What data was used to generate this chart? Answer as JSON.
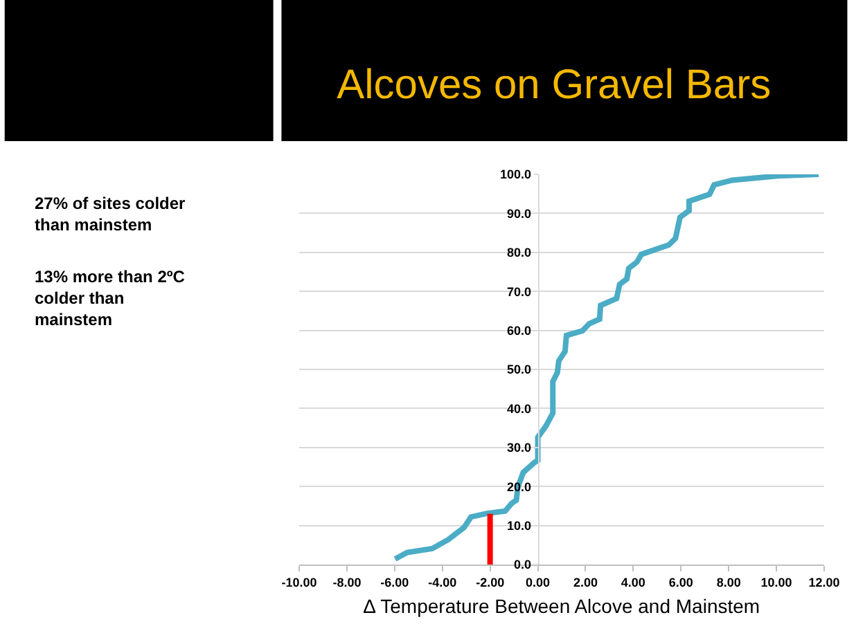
{
  "chart_data": {
    "type": "line",
    "title": "Alcoves on Gravel Bars",
    "xlabel": "∆ Temperature Between Alcove and Mainstem",
    "annotations": [
      "27% of sites colder than mainstem",
      "13% more than 2ºC colder than mainstem"
    ],
    "series": [
      {
        "color": "#4bacc6",
        "x": [
          -5.98,
          -5.47,
          -4.42,
          -3.75,
          -3.09,
          -2.8,
          -2.13,
          -1.37,
          -1.09,
          -0.9,
          -0.84,
          -0.61,
          -0.13,
          0,
          0,
          0.34,
          0.63,
          0.63,
          0.82,
          0.88,
          1.14,
          1.2,
          1.87,
          2.15,
          2.59,
          2.63,
          3.3,
          3.43,
          3.73,
          3.81,
          4.15,
          4.34,
          5.49,
          5.77,
          5.96,
          6.34,
          6.34,
          7.2,
          7.39,
          8.15,
          10.06,
          11.77
        ],
        "values": [
          1.4,
          3.1,
          4.1,
          6.4,
          9.5,
          12.2,
          13.1,
          13.7,
          15.7,
          16.5,
          19.8,
          23.6,
          26.2,
          26.7,
          32.6,
          35.5,
          38.8,
          46.9,
          49.2,
          52.2,
          54.6,
          58.7,
          59.9,
          61.7,
          62.9,
          66.4,
          68.2,
          71.8,
          73.2,
          75.9,
          77.5,
          79.5,
          81.9,
          83.6,
          89.0,
          90.7,
          93.1,
          94.9,
          97.3,
          98.5,
          99.6,
          100.0
        ]
      },
      {
        "color": "#ff0000",
        "x": [
          -2,
          -2
        ],
        "values": [
          0,
          13
        ]
      }
    ],
    "xlim": [
      -10,
      12
    ],
    "xticks": [
      {
        "value": -10,
        "label": "-10.00"
      },
      {
        "value": -8,
        "label": "-8.00"
      },
      {
        "value": -6,
        "label": "-6.00"
      },
      {
        "value": -4,
        "label": "-4.00"
      },
      {
        "value": -2,
        "label": "-2.00"
      },
      {
        "value": 0,
        "label": "0.00"
      },
      {
        "value": 2,
        "label": "2.00"
      },
      {
        "value": 4,
        "label": "4.00"
      },
      {
        "value": 6,
        "label": "6.00"
      },
      {
        "value": 8,
        "label": "8.00"
      },
      {
        "value": 10,
        "label": "10.00"
      },
      {
        "value": 12,
        "label": "12.00"
      }
    ],
    "ylim": [
      0,
      100
    ],
    "yticks": [
      {
        "value": 0,
        "label": "0.0"
      },
      {
        "value": 10,
        "label": "10.0"
      },
      {
        "value": 20,
        "label": "20.0"
      },
      {
        "value": 30,
        "label": "30.0"
      },
      {
        "value": 40,
        "label": "40.0"
      },
      {
        "value": 50,
        "label": "50.0"
      },
      {
        "value": 60,
        "label": "60.0"
      },
      {
        "value": 70,
        "label": "70.0"
      },
      {
        "value": 80,
        "label": "80.0"
      },
      {
        "value": 90,
        "label": "90.0"
      },
      {
        "value": 100,
        "label": "100.0"
      }
    ],
    "grid": "y",
    "marker": "none",
    "line_style": "solid"
  }
}
